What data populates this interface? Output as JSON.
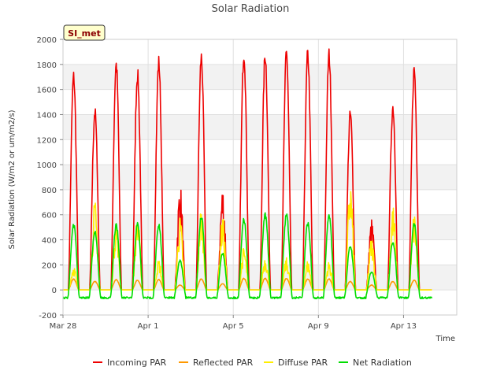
{
  "chart_data": {
    "type": "line",
    "title": "Solar Radiation",
    "xlabel": "Time",
    "ylabel": "Solar Radiation (W/m2 or um/m2/s)",
    "badge": "SI_met",
    "ylim": [
      -200,
      2000
    ],
    "yticks": [
      -200,
      0,
      200,
      400,
      600,
      800,
      1000,
      1200,
      1400,
      1600,
      1800,
      2000
    ],
    "xlim": [
      "2023-03-28",
      "2023-04-15T12:00"
    ],
    "xticks": [
      "Mar 28",
      "Apr 1",
      "Apr 5",
      "Apr 9",
      "Apr 13"
    ],
    "grid": true,
    "legend_position": "bottom",
    "days": [
      "Mar 28",
      "Mar 29",
      "Mar 30",
      "Mar 31",
      "Apr 1",
      "Apr 2",
      "Apr 3",
      "Apr 4",
      "Apr 5",
      "Apr 6",
      "Apr 7",
      "Apr 8",
      "Apr 9",
      "Apr 10",
      "Apr 11",
      "Apr 12",
      "Apr 13",
      "Apr 14"
    ],
    "series": [
      {
        "name": "Incoming PAR",
        "color": "#ee0000",
        "daily_peak": [
          1760,
          1470,
          1860,
          1780,
          1880,
          870,
          1920,
          860,
          1960,
          1940,
          1950,
          1940,
          1940,
          1450,
          580,
          1510,
          1820,
          0
        ]
      },
      {
        "name": "Reflected PAR",
        "color": "#ff9900",
        "daily_peak": [
          90,
          70,
          85,
          80,
          85,
          40,
          90,
          50,
          95,
          95,
          95,
          90,
          90,
          70,
          40,
          70,
          80,
          0
        ]
      },
      {
        "name": "Diffuse PAR",
        "color": "#ffee00",
        "daily_peak": [
          200,
          720,
          580,
          610,
          250,
          590,
          680,
          600,
          350,
          280,
          260,
          240,
          230,
          900,
          430,
          690,
          630,
          0
        ]
      },
      {
        "name": "Net Radiation",
        "color": "#00dd00",
        "daily_peak": [
          540,
          480,
          530,
          540,
          540,
          240,
          600,
          300,
          580,
          620,
          620,
          550,
          610,
          360,
          150,
          400,
          550,
          0
        ]
      }
    ]
  }
}
